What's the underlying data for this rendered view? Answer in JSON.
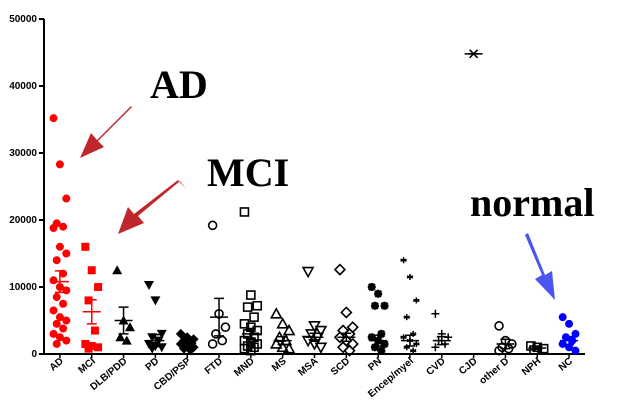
{
  "chart_data": {
    "type": "dotplot",
    "categories": [
      "AD",
      "MCI",
      "DLB/PDD",
      "PD",
      "CBD/PSP",
      "FTD",
      "MND",
      "MS",
      "MSA",
      "SCD",
      "PN",
      "Encep/myel",
      "CVD",
      "CJD",
      "other D",
      "NPH",
      "NC"
    ],
    "values": [
      [
        35200,
        28300,
        23200,
        19500,
        19000,
        18800,
        16000,
        15000,
        14000,
        12000,
        11000,
        10000,
        9500,
        8500,
        7500,
        6500,
        5500,
        5000,
        4500,
        3800,
        3000,
        2500,
        2000,
        1500
      ],
      [
        16000,
        12500,
        10000,
        8000,
        3500,
        1500,
        1200,
        1000,
        800
      ],
      [
        12500,
        5000,
        4000,
        2500,
        2000
      ],
      [
        10300,
        8000,
        3000,
        2500,
        2000,
        1500,
        1200,
        1000,
        800
      ],
      [
        3000,
        2500,
        2200,
        2000,
        1800,
        1500,
        1200,
        1000,
        800,
        600
      ],
      [
        19200,
        6000,
        4000,
        3000,
        2000,
        1500
      ],
      [
        21200,
        8800,
        7200,
        7000,
        5500,
        4500,
        4000,
        3500,
        3000,
        2500,
        2000,
        1800,
        1500,
        1200,
        1000,
        800,
        500
      ],
      [
        6000,
        4500,
        3500,
        2500,
        2000,
        1500,
        1000,
        800
      ],
      [
        12300,
        4200,
        3500,
        3000,
        2500,
        2000,
        1500,
        1000
      ],
      [
        12600,
        6200,
        4000,
        3500,
        3000,
        2500,
        2000,
        1500,
        1000,
        500
      ],
      [
        10000,
        9000,
        7200,
        7200,
        3000,
        2500,
        2000,
        1500,
        1000,
        500
      ],
      [
        14000,
        11500,
        8000,
        5500,
        3000,
        2500,
        2000,
        1500,
        1000,
        500
      ],
      [
        6000,
        3000,
        2500,
        2000,
        1500,
        1000
      ],
      [
        44800
      ],
      [
        4200,
        2000,
        1500,
        1000,
        800,
        500
      ],
      [
        1200,
        1000,
        800,
        600
      ],
      [
        5500,
        4500,
        3000,
        2500,
        2000,
        1500,
        1000,
        500
      ]
    ],
    "means": [
      10800,
      6300,
      5000,
      2000,
      1600,
      5500,
      3000,
      2000,
      2500,
      2500,
      2000,
      2000,
      2000,
      44800,
      1500,
      900,
      2000
    ],
    "errors": [
      1600,
      1800,
      2000,
      900,
      300,
      2800,
      800,
      600,
      600,
      600,
      800,
      800,
      600,
      0,
      700,
      200,
      600
    ],
    "colors": [
      "#ff0000",
      "#ff0000",
      "#000000",
      "#000000",
      "#000000",
      "#000000",
      "#000000",
      "#000000",
      "#000000",
      "#000000",
      "#000000",
      "#000000",
      "#000000",
      "#000000",
      "#000000",
      "#000000",
      "#0000ff"
    ],
    "markers": [
      "circle",
      "square",
      "triangle",
      "triangle-down",
      "diamond",
      "circle-open",
      "square-open",
      "triangle-open",
      "triangle-down-open",
      "diamond-open",
      "asterisk",
      "star",
      "plus",
      "cross",
      "circle-open",
      "square-open",
      "circle"
    ],
    "ylim": [
      0,
      50000
    ],
    "yticks": [
      0,
      10000,
      20000,
      30000,
      40000,
      50000
    ],
    "annotations": [
      "AD",
      "MCI",
      "normal"
    ]
  }
}
